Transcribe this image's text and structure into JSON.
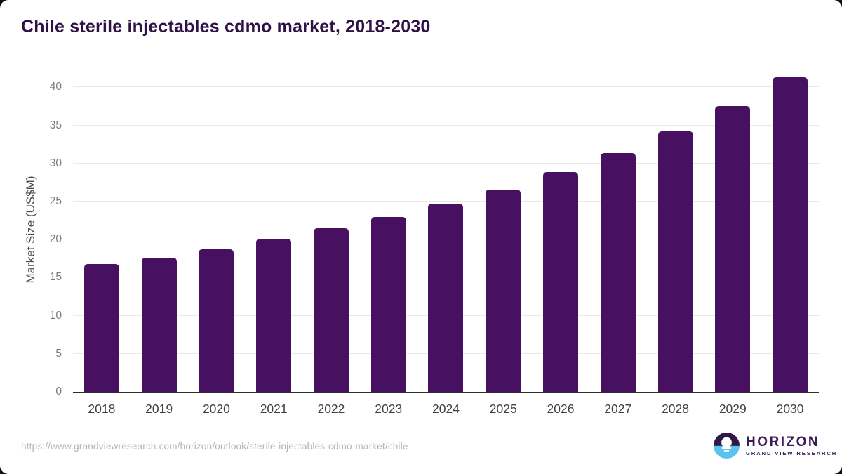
{
  "chart_data": {
    "type": "bar",
    "title": "Chile sterile injectables cdmo market, 2018-2030",
    "categories": [
      "2018",
      "2019",
      "2020",
      "2021",
      "2022",
      "2023",
      "2024",
      "2025",
      "2026",
      "2027",
      "2028",
      "2029",
      "2030"
    ],
    "values": [
      16.8,
      17.6,
      18.7,
      20.1,
      21.5,
      23.0,
      24.7,
      26.6,
      28.9,
      31.4,
      34.2,
      37.5,
      41.3
    ],
    "xlabel": "",
    "ylabel": "Market Size (US$M)",
    "y_ticks": [
      0,
      5,
      10,
      15,
      20,
      25,
      30,
      35,
      40
    ],
    "ylim": [
      0,
      42.7
    ],
    "grid": true,
    "legend": false,
    "bar_color": "#481061",
    "title_color": "#301146"
  },
  "footer": {
    "source_url": "https://www.grandviewresearch.com/horizon/outlook/sterile-injectables-cdmo-market/chile",
    "logo": {
      "brand": "HORIZON",
      "subbrand": "GRAND VIEW RESEARCH",
      "color_dark": "#2d1846",
      "color_blue": "#5ac3f0",
      "text_color": "#3b1b57"
    }
  }
}
